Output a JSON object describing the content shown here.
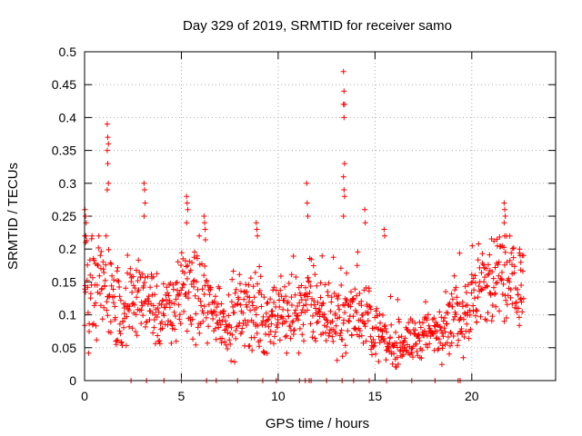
{
  "chart_data": {
    "type": "scatter",
    "title": "Day 329 of 2019, SRMTID for receiver samo",
    "xlabel": "GPS time / hours",
    "ylabel": "SRMTID / TECUs",
    "xlim": [
      0,
      24.33
    ],
    "ylim": [
      0,
      0.5
    ],
    "xticks": [
      0,
      5,
      10,
      15,
      20
    ],
    "xtick_labels": [
      "0",
      "5",
      "10",
      "15",
      "20"
    ],
    "yticks": [
      0,
      0.05,
      0.1,
      0.15,
      0.2,
      0.25,
      0.3,
      0.35,
      0.4,
      0.45,
      0.5
    ],
    "ytick_labels": [
      "0",
      "0.05",
      "0.1",
      "0.15",
      "0.2",
      "0.25",
      "0.3",
      "0.35",
      "0.4",
      "0.45",
      "0.5"
    ],
    "grid": true,
    "marker": "+",
    "color": "#ff0000",
    "baseline_level": [
      [
        0.0,
        0.14
      ],
      [
        0.5,
        0.13
      ],
      [
        1.0,
        0.15
      ],
      [
        1.5,
        0.12
      ],
      [
        2.0,
        0.11
      ],
      [
        2.5,
        0.12
      ],
      [
        3.0,
        0.13
      ],
      [
        3.5,
        0.12
      ],
      [
        4.0,
        0.1
      ],
      [
        4.5,
        0.11
      ],
      [
        5.0,
        0.13
      ],
      [
        5.5,
        0.14
      ],
      [
        6.0,
        0.13
      ],
      [
        6.5,
        0.11
      ],
      [
        7.0,
        0.1
      ],
      [
        7.5,
        0.09
      ],
      [
        8.0,
        0.1
      ],
      [
        8.5,
        0.11
      ],
      [
        9.0,
        0.1
      ],
      [
        9.5,
        0.09
      ],
      [
        10.0,
        0.1
      ],
      [
        10.5,
        0.1
      ],
      [
        11.0,
        0.11
      ],
      [
        11.5,
        0.12
      ],
      [
        12.0,
        0.11
      ],
      [
        12.5,
        0.1
      ],
      [
        13.0,
        0.09
      ],
      [
        13.5,
        0.1
      ],
      [
        14.0,
        0.11
      ],
      [
        14.5,
        0.1
      ],
      [
        15.0,
        0.08
      ],
      [
        15.5,
        0.06
      ],
      [
        16.0,
        0.05
      ],
      [
        16.5,
        0.06
      ],
      [
        17.0,
        0.06
      ],
      [
        17.5,
        0.07
      ],
      [
        18.0,
        0.07
      ],
      [
        18.5,
        0.09
      ],
      [
        19.0,
        0.1
      ],
      [
        19.5,
        0.1
      ],
      [
        20.0,
        0.12
      ],
      [
        20.5,
        0.14
      ],
      [
        21.0,
        0.15
      ],
      [
        21.5,
        0.16
      ],
      [
        22.0,
        0.15
      ],
      [
        22.5,
        0.14
      ]
    ],
    "data_range_hours": [
      0,
      22.7
    ],
    "approx_point_count": 1100,
    "spikes": [
      {
        "x": 0.05,
        "values": [
          0.26,
          0.25,
          0.24,
          0.22,
          0.21
        ]
      },
      {
        "x": 1.2,
        "values": [
          0.39,
          0.37,
          0.36,
          0.35,
          0.33,
          0.3,
          0.29
        ]
      },
      {
        "x": 3.1,
        "values": [
          0.3,
          0.29,
          0.27,
          0.25
        ]
      },
      {
        "x": 5.3,
        "values": [
          0.28,
          0.27,
          0.26,
          0.24
        ]
      },
      {
        "x": 6.2,
        "values": [
          0.25,
          0.24,
          0.23
        ]
      },
      {
        "x": 8.9,
        "values": [
          0.24,
          0.23,
          0.22
        ]
      },
      {
        "x": 11.5,
        "values": [
          0.3,
          0.27,
          0.25
        ]
      },
      {
        "x": 13.4,
        "values": [
          0.47,
          0.44,
          0.42,
          0.42,
          0.4,
          0.33,
          0.31,
          0.29,
          0.28,
          0.25
        ]
      },
      {
        "x": 14.5,
        "values": [
          0.26,
          0.24
        ]
      },
      {
        "x": 15.5,
        "values": [
          0.23,
          0.22
        ]
      },
      {
        "x": 21.7,
        "values": [
          0.27,
          0.26,
          0.25,
          0.24,
          0.22
        ]
      },
      {
        "x": 22.5,
        "values": [
          0.2,
          0.19,
          0.18
        ]
      }
    ],
    "zero_points_x": [
      2.4,
      3.2,
      4.1,
      5.0,
      6.3,
      6.8,
      7.9,
      9.2,
      9.9,
      11.1,
      11.4,
      11.6,
      11.7,
      12.5,
      13.3,
      13.9,
      14.7,
      15.6,
      16.9,
      18.1,
      19.3,
      19.4
    ]
  }
}
